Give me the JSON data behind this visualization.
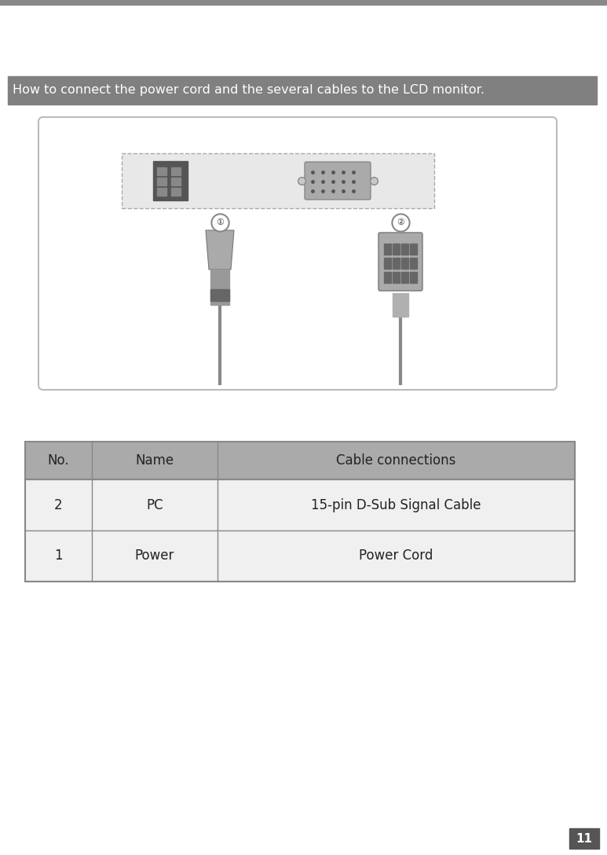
{
  "title": "How to connect the power cord and the several cables to the LCD monitor.",
  "title_bg": "#808080",
  "title_fg": "#ffffff",
  "page_number": "11",
  "page_bg": "#555555",
  "table_header": [
    "No.",
    "Name",
    "Cable connections"
  ],
  "table_rows": [
    [
      "1",
      "Power",
      "Power Cord"
    ],
    [
      "2",
      "PC",
      "15-pin D-Sub Signal Cable"
    ]
  ],
  "table_header_bg": "#aaaaaa",
  "table_border": "#888888",
  "bg_color": "#ffffff",
  "top_line_color": "#888888",
  "img_box_bg": "#ffffff",
  "img_box_border": "#bbbbbb",
  "panel_bg": "#e8e8e8",
  "panel_border": "#aaaaaa",
  "connector_dark": "#555555",
  "connector_mid": "#888888",
  "connector_light": "#aaaaaa",
  "cable_color": "#888888"
}
